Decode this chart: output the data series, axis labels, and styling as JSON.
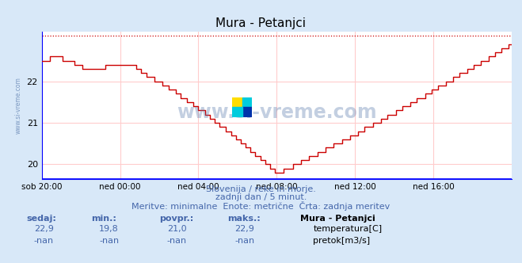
{
  "title": "Mura - Petanjci",
  "bg_color": "#d8e8f8",
  "plot_bg_color": "#ffffff",
  "grid_color": "#ffcccc",
  "x_labels": [
    "sob 20:00",
    "ned 00:00",
    "ned 04:00",
    "ned 08:00",
    "ned 12:00",
    "ned 16:00"
  ],
  "x_ticks": [
    0,
    48,
    96,
    144,
    192,
    240
  ],
  "y_min": 19.65,
  "y_max": 23.2,
  "y_ticks": [
    20,
    21,
    22
  ],
  "dotted_line_y": 23.1,
  "line_color": "#cc0000",
  "subtitle1": "Slovenija / reke in morje.",
  "subtitle2": "zadnji dan / 5 minut.",
  "subtitle3": "Meritve: minimalne  Enote: metrične  Črta: zadnja meritev",
  "subtitle_color": "#4466aa",
  "label_color": "#4466aa",
  "watermark": "www.si-vreme.com",
  "watermark_color": "#5577aa",
  "table_headers": [
    "sedaj:",
    "min.:",
    "povpr.:",
    "maks.:"
  ],
  "table_values_temp": [
    "22,9",
    "19,8",
    "21,0",
    "22,9"
  ],
  "table_values_flow": [
    "-nan",
    "-nan",
    "-nan",
    "-nan"
  ],
  "legend_title": "Mura - Petanjci",
  "legend_temp": "temperatura[C]",
  "legend_flow": "pretok[m3/s]",
  "legend_color_temp": "#cc0000",
  "legend_color_flow": "#00cc00",
  "ylabel_text": "www.si-vreme.com",
  "total_points": 289
}
